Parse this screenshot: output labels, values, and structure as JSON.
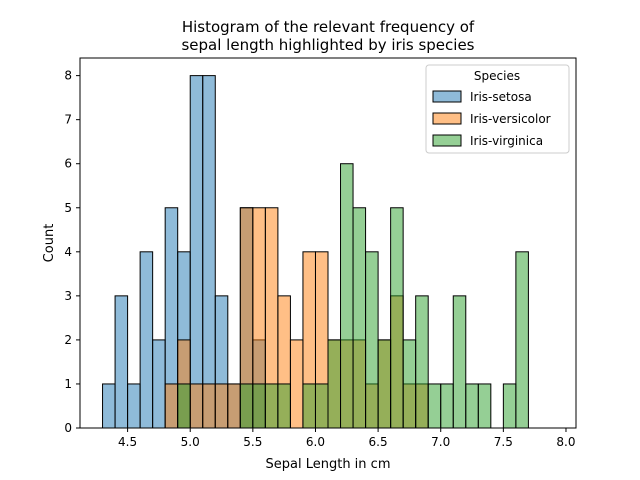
{
  "chart_data": {
    "type": "bar",
    "title_lines": [
      "Histogram of the relevant frequency of",
      "sepal length highlighted by iris species"
    ],
    "xlabel": "Sepal Length in cm",
    "ylabel": "Count",
    "xlim": [
      4.12,
      8.08
    ],
    "ylim": [
      0,
      8.4
    ],
    "x_ticks": [
      4.5,
      5.0,
      5.5,
      6.0,
      6.5,
      7.0,
      7.5,
      8.0
    ],
    "x_tick_labels": [
      "4.5",
      "5.0",
      "5.5",
      "6.0",
      "6.5",
      "7.0",
      "7.5",
      "8.0"
    ],
    "y_ticks": [
      0,
      1,
      2,
      3,
      4,
      5,
      6,
      7,
      8
    ],
    "y_tick_labels": [
      "0",
      "1",
      "2",
      "3",
      "4",
      "5",
      "6",
      "7",
      "8"
    ],
    "bin_start": 4.3,
    "bin_width": 0.1,
    "bin_count": 36,
    "grid": false,
    "legend": {
      "title": "Species",
      "placement": "top-right"
    },
    "series": [
      {
        "name": "Iris-setosa",
        "color": "#1f77b4",
        "values": [
          1,
          3,
          1,
          4,
          2,
          5,
          4,
          8,
          8,
          3,
          1,
          5,
          2,
          0,
          0,
          0,
          0,
          0,
          0,
          0,
          0,
          0,
          0,
          0,
          0,
          0,
          0,
          0,
          0,
          0,
          0,
          0,
          0,
          0,
          0,
          0
        ]
      },
      {
        "name": "Iris-versicolor",
        "color": "#ff7f0e",
        "values": [
          0,
          0,
          0,
          0,
          0,
          1,
          2,
          1,
          1,
          1,
          1,
          5,
          5,
          5,
          3,
          2,
          4,
          4,
          2,
          2,
          2,
          1,
          2,
          3,
          1,
          1,
          0,
          0,
          0,
          0,
          0,
          0,
          0,
          0,
          0,
          0
        ]
      },
      {
        "name": "Iris-virginica",
        "color": "#2ca02c",
        "values": [
          0,
          0,
          0,
          0,
          0,
          0,
          1,
          0,
          0,
          0,
          0,
          1,
          1,
          1,
          1,
          0,
          1,
          1,
          2,
          6,
          5,
          4,
          2,
          5,
          2,
          3,
          1,
          1,
          3,
          1,
          1,
          0,
          1,
          4,
          0,
          0
        ]
      }
    ]
  }
}
